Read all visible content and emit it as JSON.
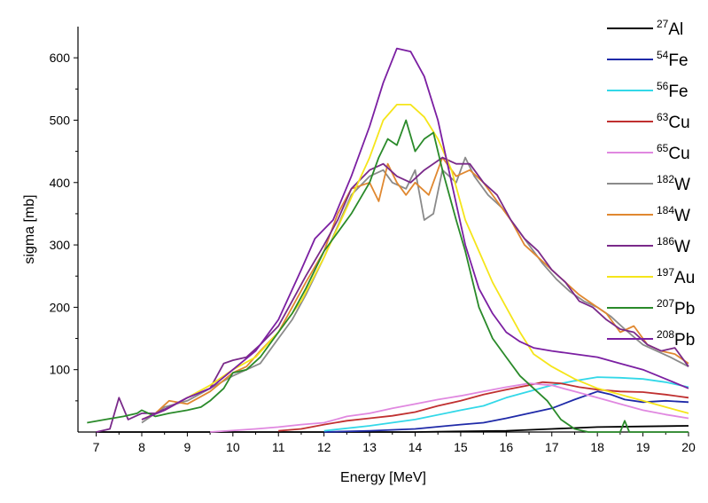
{
  "chart_data": {
    "type": "line",
    "title": "",
    "xlabel": "Energy [MeV]",
    "ylabel": "sigma [mb]",
    "xlim": [
      6.6,
      20.0
    ],
    "ylim": [
      0,
      650
    ],
    "x_ticks": [
      "7",
      "8",
      "9",
      "10",
      "11",
      "12",
      "13",
      "14",
      "15",
      "16",
      "17",
      "18",
      "19",
      "20"
    ],
    "y_ticks": [
      "100",
      "200",
      "300",
      "400",
      "500",
      "600"
    ],
    "grid": false,
    "legend_position": "right",
    "series": [
      {
        "name": "Al",
        "mass": "27",
        "color": "#000000",
        "points": [
          [
            7,
            0
          ],
          [
            10,
            0
          ],
          [
            12,
            0
          ],
          [
            14,
            0
          ],
          [
            16,
            2
          ],
          [
            17,
            5
          ],
          [
            18,
            8
          ],
          [
            19,
            9
          ],
          [
            20,
            10
          ]
        ]
      },
      {
        "name": "Fe",
        "mass": "54",
        "color": "#1f2aa8",
        "points": [
          [
            12,
            0
          ],
          [
            13,
            2
          ],
          [
            14,
            5
          ],
          [
            15,
            12
          ],
          [
            15.5,
            15
          ],
          [
            16,
            22
          ],
          [
            16.5,
            30
          ],
          [
            17,
            38
          ],
          [
            17.5,
            52
          ],
          [
            18,
            65
          ],
          [
            18.3,
            60
          ],
          [
            18.6,
            52
          ],
          [
            19,
            48
          ],
          [
            19.5,
            50
          ],
          [
            20,
            48
          ]
        ]
      },
      {
        "name": "Fe",
        "mass": "56",
        "color": "#33d8e8",
        "points": [
          [
            12,
            2
          ],
          [
            13,
            10
          ],
          [
            14,
            20
          ],
          [
            15,
            35
          ],
          [
            15.5,
            42
          ],
          [
            16,
            55
          ],
          [
            16.5,
            65
          ],
          [
            17,
            75
          ],
          [
            17.5,
            82
          ],
          [
            18,
            88
          ],
          [
            18.5,
            87
          ],
          [
            19,
            85
          ],
          [
            19.5,
            80
          ],
          [
            20,
            72
          ]
        ]
      },
      {
        "name": "Cu",
        "mass": "63",
        "color": "#c03030",
        "points": [
          [
            11,
            2
          ],
          [
            11.5,
            5
          ],
          [
            12,
            12
          ],
          [
            12.5,
            18
          ],
          [
            13,
            22
          ],
          [
            13.5,
            26
          ],
          [
            14,
            32
          ],
          [
            14.5,
            42
          ],
          [
            15,
            50
          ],
          [
            15.5,
            60
          ],
          [
            16,
            68
          ],
          [
            16.5,
            75
          ],
          [
            16.8,
            80
          ],
          [
            17.2,
            78
          ],
          [
            17.6,
            72
          ],
          [
            18,
            68
          ],
          [
            18.5,
            65
          ],
          [
            19,
            64
          ],
          [
            19.5,
            60
          ],
          [
            20,
            55
          ]
        ]
      },
      {
        "name": "Cu",
        "mass": "65",
        "color": "#e088e0",
        "points": [
          [
            9.5,
            0
          ],
          [
            10.5,
            5
          ],
          [
            11,
            8
          ],
          [
            11.5,
            12
          ],
          [
            12,
            15
          ],
          [
            12.5,
            25
          ],
          [
            13,
            30
          ],
          [
            13.5,
            38
          ],
          [
            14,
            45
          ],
          [
            14.5,
            52
          ],
          [
            15,
            58
          ],
          [
            15.5,
            65
          ],
          [
            16,
            72
          ],
          [
            16.5,
            78
          ],
          [
            17,
            75
          ],
          [
            17.5,
            65
          ],
          [
            18,
            55
          ],
          [
            18.5,
            45
          ],
          [
            19,
            35
          ],
          [
            19.5,
            28
          ],
          [
            20,
            22
          ]
        ]
      },
      {
        "name": "W",
        "mass": "182",
        "color": "#8a8a8a",
        "points": [
          [
            8,
            15
          ],
          [
            8.2,
            25
          ],
          [
            8.5,
            40
          ],
          [
            9,
            50
          ],
          [
            9.5,
            70
          ],
          [
            10,
            90
          ],
          [
            10.3,
            100
          ],
          [
            10.6,
            110
          ],
          [
            11,
            150
          ],
          [
            11.3,
            180
          ],
          [
            11.6,
            220
          ],
          [
            12,
            280
          ],
          [
            12.3,
            330
          ],
          [
            12.6,
            380
          ],
          [
            13,
            410
          ],
          [
            13.3,
            420
          ],
          [
            13.5,
            400
          ],
          [
            13.8,
            390
          ],
          [
            14,
            420
          ],
          [
            14.2,
            340
          ],
          [
            14.4,
            350
          ],
          [
            14.6,
            420
          ],
          [
            14.9,
            400
          ],
          [
            15.1,
            440
          ],
          [
            15.3,
            410
          ],
          [
            15.6,
            380
          ],
          [
            15.9,
            360
          ],
          [
            16.2,
            330
          ],
          [
            16.5,
            300
          ],
          [
            16.8,
            270
          ],
          [
            17.1,
            245
          ],
          [
            17.4,
            225
          ],
          [
            17.7,
            210
          ],
          [
            18,
            200
          ],
          [
            18.3,
            185
          ],
          [
            18.6,
            165
          ],
          [
            19,
            140
          ],
          [
            19.3,
            130
          ],
          [
            19.6,
            120
          ],
          [
            20,
            105
          ]
        ]
      },
      {
        "name": "W",
        "mass": "184",
        "color": "#e08830",
        "points": [
          [
            8,
            20
          ],
          [
            8.3,
            30
          ],
          [
            8.6,
            50
          ],
          [
            9,
            45
          ],
          [
            9.5,
            65
          ],
          [
            10,
            95
          ],
          [
            10.3,
            105
          ],
          [
            10.6,
            130
          ],
          [
            11,
            160
          ],
          [
            11.3,
            200
          ],
          [
            11.6,
            240
          ],
          [
            12,
            290
          ],
          [
            12.3,
            350
          ],
          [
            12.6,
            390
          ],
          [
            13,
            400
          ],
          [
            13.2,
            370
          ],
          [
            13.4,
            430
          ],
          [
            13.6,
            400
          ],
          [
            13.8,
            380
          ],
          [
            14,
            400
          ],
          [
            14.3,
            380
          ],
          [
            14.6,
            440
          ],
          [
            14.9,
            410
          ],
          [
            15.2,
            420
          ],
          [
            15.5,
            400
          ],
          [
            15.8,
            370
          ],
          [
            16.1,
            340
          ],
          [
            16.4,
            300
          ],
          [
            16.7,
            280
          ],
          [
            17,
            260
          ],
          [
            17.3,
            240
          ],
          [
            17.6,
            220
          ],
          [
            17.9,
            205
          ],
          [
            18.2,
            190
          ],
          [
            18.5,
            160
          ],
          [
            18.8,
            170
          ],
          [
            19.1,
            140
          ],
          [
            19.4,
            130
          ],
          [
            19.7,
            125
          ],
          [
            20,
            110
          ]
        ]
      },
      {
        "name": "W",
        "mass": "186",
        "color": "#7a2a8a",
        "points": [
          [
            7,
            0
          ],
          [
            7.3,
            5
          ],
          [
            7.5,
            55
          ],
          [
            7.7,
            20
          ],
          [
            8,
            30
          ],
          [
            8.3,
            30
          ],
          [
            8.6,
            40
          ],
          [
            9,
            55
          ],
          [
            9.5,
            70
          ],
          [
            9.8,
            110
          ],
          [
            10,
            115
          ],
          [
            10.3,
            120
          ],
          [
            10.6,
            140
          ],
          [
            11,
            170
          ],
          [
            11.3,
            210
          ],
          [
            11.6,
            250
          ],
          [
            12,
            300
          ],
          [
            12.3,
            340
          ],
          [
            12.6,
            390
          ],
          [
            13,
            420
          ],
          [
            13.3,
            430
          ],
          [
            13.6,
            410
          ],
          [
            13.9,
            400
          ],
          [
            14.2,
            420
          ],
          [
            14.6,
            440
          ],
          [
            14.9,
            430
          ],
          [
            15.2,
            430
          ],
          [
            15.5,
            400
          ],
          [
            15.8,
            380
          ],
          [
            16.1,
            340
          ],
          [
            16.4,
            310
          ],
          [
            16.7,
            290
          ],
          [
            17,
            260
          ],
          [
            17.3,
            240
          ],
          [
            17.6,
            210
          ],
          [
            17.9,
            200
          ],
          [
            18.2,
            180
          ],
          [
            18.5,
            165
          ],
          [
            18.8,
            160
          ],
          [
            19.1,
            140
          ],
          [
            19.4,
            130
          ],
          [
            19.7,
            135
          ],
          [
            20,
            105
          ]
        ]
      },
      {
        "name": "Au",
        "mass": "197",
        "color": "#f5e51a",
        "points": [
          [
            8,
            20
          ],
          [
            8.5,
            35
          ],
          [
            9,
            55
          ],
          [
            9.5,
            75
          ],
          [
            10,
            100
          ],
          [
            10.5,
            120
          ],
          [
            11,
            160
          ],
          [
            11.5,
            210
          ],
          [
            12,
            280
          ],
          [
            12.5,
            360
          ],
          [
            13,
            440
          ],
          [
            13.3,
            500
          ],
          [
            13.6,
            525
          ],
          [
            13.9,
            525
          ],
          [
            14.2,
            505
          ],
          [
            14.5,
            470
          ],
          [
            14.8,
            420
          ],
          [
            15.1,
            340
          ],
          [
            15.4,
            290
          ],
          [
            15.7,
            240
          ],
          [
            16,
            200
          ],
          [
            16.3,
            160
          ],
          [
            16.6,
            125
          ],
          [
            17,
            105
          ],
          [
            17.5,
            85
          ],
          [
            18,
            70
          ],
          [
            18.5,
            60
          ],
          [
            19,
            50
          ],
          [
            19.5,
            40
          ],
          [
            20,
            30
          ]
        ]
      },
      {
        "name": "Pb",
        "mass": "207",
        "color": "#2a8a2a",
        "points": [
          [
            6.8,
            15
          ],
          [
            7.2,
            20
          ],
          [
            7.6,
            25
          ],
          [
            7.9,
            30
          ],
          [
            8,
            35
          ],
          [
            8.3,
            25
          ],
          [
            8.6,
            30
          ],
          [
            9,
            35
          ],
          [
            9.3,
            40
          ],
          [
            9.5,
            50
          ],
          [
            9.8,
            70
          ],
          [
            10,
            95
          ],
          [
            10.3,
            100
          ],
          [
            10.6,
            120
          ],
          [
            11,
            160
          ],
          [
            11.3,
            190
          ],
          [
            11.6,
            230
          ],
          [
            12,
            290
          ],
          [
            12.3,
            320
          ],
          [
            12.6,
            350
          ],
          [
            13,
            400
          ],
          [
            13.2,
            440
          ],
          [
            13.4,
            470
          ],
          [
            13.6,
            460
          ],
          [
            13.8,
            500
          ],
          [
            14,
            450
          ],
          [
            14.2,
            470
          ],
          [
            14.4,
            480
          ],
          [
            14.6,
            420
          ],
          [
            14.9,
            340
          ],
          [
            15.1,
            290
          ],
          [
            15.4,
            200
          ],
          [
            15.7,
            150
          ],
          [
            16,
            120
          ],
          [
            16.3,
            90
          ],
          [
            16.6,
            70
          ],
          [
            16.9,
            50
          ],
          [
            17.2,
            20
          ],
          [
            17.5,
            5
          ],
          [
            17.8,
            0
          ],
          [
            18.5,
            0
          ],
          [
            18.6,
            18
          ],
          [
            18.7,
            0
          ],
          [
            20,
            0
          ]
        ]
      },
      {
        "name": "Pb",
        "mass": "208",
        "color": "#7b1fa2",
        "points": [
          [
            8,
            20
          ],
          [
            8.5,
            35
          ],
          [
            9,
            55
          ],
          [
            9.5,
            70
          ],
          [
            10,
            100
          ],
          [
            10.5,
            130
          ],
          [
            11,
            180
          ],
          [
            11.5,
            260
          ],
          [
            11.8,
            310
          ],
          [
            12.2,
            340
          ],
          [
            12.6,
            410
          ],
          [
            13,
            490
          ],
          [
            13.3,
            560
          ],
          [
            13.6,
            615
          ],
          [
            13.9,
            610
          ],
          [
            14.2,
            570
          ],
          [
            14.5,
            500
          ],
          [
            14.8,
            400
          ],
          [
            15.1,
            300
          ],
          [
            15.4,
            230
          ],
          [
            15.7,
            190
          ],
          [
            16,
            160
          ],
          [
            16.3,
            145
          ],
          [
            16.6,
            135
          ],
          [
            17,
            130
          ],
          [
            17.5,
            125
          ],
          [
            18,
            120
          ],
          [
            18.5,
            110
          ],
          [
            19,
            100
          ],
          [
            19.5,
            85
          ],
          [
            20,
            70
          ]
        ]
      }
    ]
  }
}
